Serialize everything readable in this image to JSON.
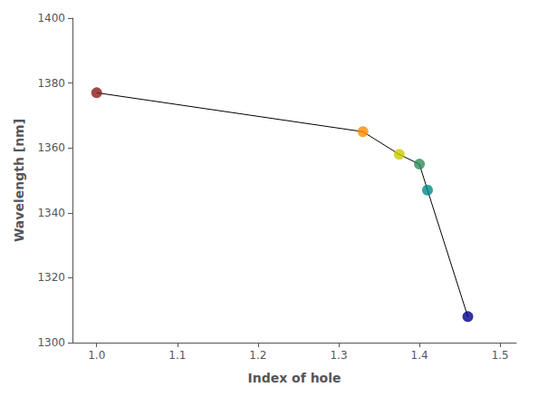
{
  "chart_data": {
    "type": "line",
    "xlabel": "Index of hole",
    "ylabel": "Wavelength [nm]",
    "x": [
      1.0,
      1.33,
      1.375,
      1.4,
      1.41,
      1.46
    ],
    "values": [
      1377,
      1365,
      1358,
      1355,
      1347,
      1308
    ],
    "color": "black",
    "colors": [
      "#8B1A1A",
      "#FF8C00",
      "#CCCC00",
      "#2E8B57",
      "#008B8B",
      "#00008B"
    ],
    "marker": "circle",
    "xlim": [
      0.97,
      1.52
    ],
    "ylim": [
      1300,
      1400
    ],
    "xticks": [
      {
        "value": 1.0,
        "label": "1.0"
      },
      1.1,
      1.2,
      1.3,
      1.4,
      1.5
    ],
    "yticks": [
      1300,
      1320,
      1340,
      1360,
      1380,
      1400
    ],
    "grid": false
  }
}
